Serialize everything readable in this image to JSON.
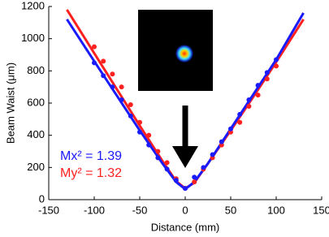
{
  "chart_data": {
    "type": "scatter",
    "xlabel": "Distance (mm)",
    "ylabel": "Beam Waist (μm)",
    "xlim": [
      -150,
      150
    ],
    "ylim": [
      0,
      1200
    ],
    "xticks": [
      -150,
      -100,
      -50,
      0,
      50,
      100,
      150
    ],
    "yticks": [
      0,
      200,
      400,
      600,
      800,
      1000,
      1200
    ],
    "grid": false,
    "series": [
      {
        "mode": "lines",
        "color": "#ff2020",
        "x": [
          -130,
          -100,
          -75,
          -50,
          -25,
          -10,
          0,
          10,
          25,
          50,
          75,
          100,
          130
        ],
        "values": [
          1180,
          910,
          685,
          460,
          240,
          115,
          70,
          105,
          225,
          430,
          640,
          855,
          1120
        ]
      },
      {
        "mode": "lines",
        "color": "#1a1aff",
        "x": [
          -130,
          -100,
          -75,
          -50,
          -25,
          -10,
          0,
          10,
          25,
          50,
          75,
          100,
          130
        ],
        "values": [
          1120,
          860,
          645,
          430,
          225,
          110,
          65,
          110,
          225,
          440,
          655,
          870,
          1160
        ]
      },
      {
        "mode": "markers",
        "color": "#ff2020",
        "x": [
          -100,
          -90,
          -80,
          -70,
          -60,
          -50,
          -40,
          -30,
          -20,
          -10,
          0,
          10,
          20,
          30,
          40,
          50,
          60,
          70,
          80,
          90,
          100
        ],
        "values": [
          950,
          860,
          780,
          700,
          590,
          480,
          400,
          300,
          230,
          130,
          70,
          110,
          190,
          260,
          340,
          420,
          480,
          580,
          650,
          750,
          830
        ]
      },
      {
        "mode": "markers",
        "color": "#1a1aff",
        "x": [
          -100,
          -90,
          -80,
          -70,
          -60,
          -50,
          -40,
          -30,
          -20,
          -10,
          0,
          10,
          20,
          30,
          40,
          50,
          60,
          70,
          80,
          90,
          100
        ],
        "values": [
          850,
          770,
          700,
          620,
          520,
          420,
          340,
          260,
          190,
          120,
          70,
          140,
          200,
          280,
          360,
          440,
          530,
          620,
          710,
          790,
          870
        ]
      }
    ],
    "annotations": [
      {
        "text": "Mx² = 1.39",
        "color": "#1a1aff"
      },
      {
        "text": "My² = 1.32",
        "color": "#ff2020"
      }
    ]
  }
}
